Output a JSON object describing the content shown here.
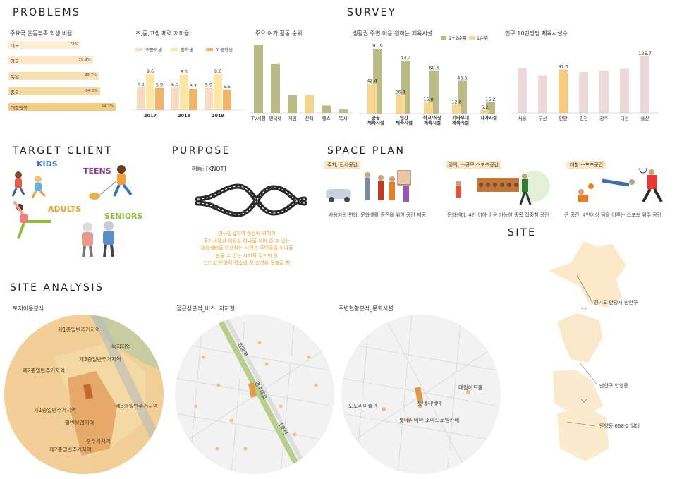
{
  "problems": {
    "title": "PROBLEMS",
    "chart1": {
      "title": "주요국 운동부족 학생 비율",
      "rows": [
        {
          "label": "미국",
          "value": 72,
          "text": "72%"
        },
        {
          "label": "영국",
          "value": 79.9,
          "text": "79.9%"
        },
        {
          "label": "독일",
          "value": 83.7,
          "text": "83.7%"
        },
        {
          "label": "중국",
          "value": 84.3,
          "text": "84.3%"
        },
        {
          "label": "대한민국",
          "value": 94.2,
          "text": "94.2%"
        }
      ]
    },
    "chart2": {
      "title": "초,중,고생 체력 저하율",
      "legend": [
        "초등학생",
        "중학생",
        "고등학생"
      ],
      "colors": [
        "#f5dcc2",
        "#fbe6a6",
        "#f0b36a"
      ],
      "categories": [
        "2017",
        "2018",
        "2019"
      ],
      "series": [
        {
          "name": "초등학생",
          "values": [
            6.1,
            6.0,
            5.9
          ]
        },
        {
          "name": "중학생",
          "values": [
            9.6,
            9.5,
            9.6
          ]
        },
        {
          "name": "고등학생",
          "values": [
            5.9,
            5.7,
            5.5
          ]
        }
      ]
    },
    "chart3": {
      "title": "주요 여가 활동 순위",
      "categories": [
        "TV시청",
        "인터넷",
        "게임",
        "산책",
        "헬스",
        "독서"
      ],
      "values": [
        100,
        72,
        26,
        26,
        11,
        5
      ],
      "colors": [
        "#b9ba85",
        "#b9ba85",
        "#b9ba85",
        "#f5d58c",
        "#b9ba85",
        "#b9ba85"
      ]
    }
  },
  "survey": {
    "title": "SURVEY",
    "chart1": {
      "title": "생활권 주변 이용 원하는 체육시설",
      "legend": [
        "1+2순위",
        "1순위"
      ],
      "colors": [
        "#b9ba85",
        "#f7d78f"
      ],
      "categories": [
        "공공\n체육시설",
        "민간\n체육시설",
        "학교/직장\n체육시설",
        "기타부대\n체육시설",
        "자가시설"
      ],
      "series": [
        {
          "name": "1+2순위",
          "values": [
            91.9,
            74.4,
            60.6,
            46.5,
            16.2
          ]
        },
        {
          "name": "1순위",
          "values": [
            42.4,
            26.4,
            15.8,
            12.6,
            5.2
          ]
        }
      ]
    },
    "chart2": {
      "title": "인구 10만명당 체육시설수",
      "categories": [
        "서울",
        "부산",
        "안양",
        "인천",
        "광주",
        "대전",
        "울산"
      ],
      "values": [
        101,
        83,
        97.6,
        92,
        95,
        99,
        126.7
      ],
      "labels": [
        "",
        "",
        "97.6",
        "",
        "",
        "",
        "126.7"
      ],
      "highlight": 2
    }
  },
  "target": {
    "title": "TARGET CLIENT",
    "groups": [
      {
        "label": "KIDS",
        "color": "#3d7fc1"
      },
      {
        "label": "TEENS",
        "color": "#8b3c8c"
      },
      {
        "label": "ADULTS",
        "color": "#e8a12b"
      },
      {
        "label": "SENIORS",
        "color": "#8dbb3a"
      }
    ]
  },
  "purpose": {
    "title": "PURPOSE",
    "knot": "매듭; [KNOT]",
    "lines": [
      "인구밀집지역 중심에 위치해",
      "주거생활과 체육을 하나로 묶어 줄 수 있는",
      "체육센터로 이용하는 시민과 주민들을 하나로",
      "만들 수 있는 사회적 장소의 장",
      "그리고 문화적 장소의 장 조성을 목표로 함"
    ]
  },
  "space": {
    "title": "SPACE PLAN",
    "items": [
      {
        "tag": "주차, 전시공간",
        "desc": "사용자의 편의, 문화생활 증진을 위한 공간 제공"
      },
      {
        "tag": "강의, 소규모 스포츠공간",
        "desc": "문화센터, 4인 이하 이용 가능한 종목 집중형 공간"
      },
      {
        "tag": "대형 스포츠공간",
        "desc": "큰 공간, 4인이상 팀을 이루는 스포츠 위주 공간"
      }
    ]
  },
  "site": {
    "title": "SITE",
    "labels": [
      "경기도 안양시 만안구",
      "만안구 안양동",
      "안양동 668-2 일대"
    ]
  },
  "analysis": {
    "title": "SITE ANALYSIS",
    "maps": [
      {
        "title": "토지이용분석",
        "labels": [
          "제1종일반주거지역",
          "녹지지역",
          "제3종일반주거지역",
          "제2종일반주거지역",
          "제1종일반주거지역",
          "제3종일반주거지역",
          "일반상업지역",
          "준주거지역",
          "제2종일반주거지역"
        ]
      },
      {
        "title": "접근성분석_버스, 지하철",
        "labels": [
          "안양역",
          "1호선",
          "경수대로"
        ]
      },
      {
        "title": "주변현황분석_문화시설",
        "labels": [
          "대림아트홀",
          "롯데시네마",
          "도도리미술관",
          "롯데시네마 소마드로잉카페"
        ]
      }
    ]
  }
}
